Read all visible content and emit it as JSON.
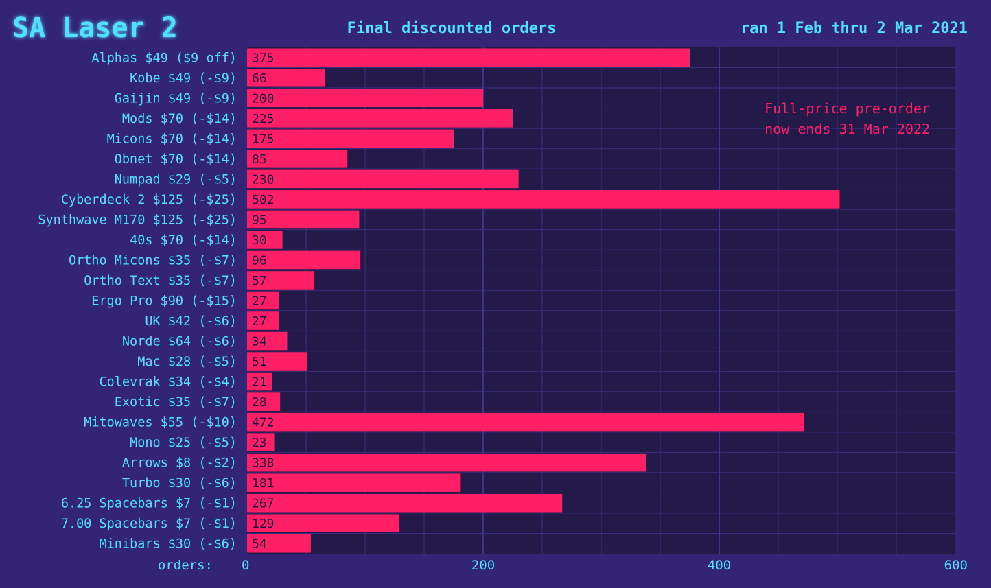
{
  "header": {
    "logo": "SA Laser 2",
    "title": "Final discounted orders",
    "date_range": "ran 1 Feb thru 2 Mar 2021"
  },
  "annotation": {
    "line1": "Full-price pre-order",
    "line2": "now ends 31 Mar 2022"
  },
  "colors": {
    "background": "#342476",
    "plot_background": "#231a4a",
    "bar": "#ff1f66",
    "label_text": "#52e0ff",
    "logo_glow": "#1f9cff",
    "annotation_text": "#ff1f66",
    "grid": "#3b2d80"
  },
  "chart_data": {
    "type": "bar",
    "orientation": "horizontal",
    "title": "Final discounted orders",
    "xlabel": "orders:",
    "ylabel": "",
    "xlim": [
      0,
      600
    ],
    "x_ticks": [
      0,
      200,
      400,
      600
    ],
    "grid": true,
    "categories": [
      "Alphas $49 ($9 off)",
      "Kobe $49 (-$9)",
      "Gaijin $49 (-$9)",
      "Mods $70 (-$14)",
      "Micons $70 (-$14)",
      "Obnet $70 (-$14)",
      "Numpad $29 (-$5)",
      "Cyberdeck 2 $125 (-$25)",
      "Synthwave M170 $125 (-$25)",
      "40s $70 (-$14)",
      "Ortho Micons $35 (-$7)",
      "Ortho Text $35 (-$7)",
      "Ergo Pro $90 (-$15)",
      "UK $42 (-$6)",
      "Norde $64 (-$6)",
      "Mac $28 (-$5)",
      "Colevrak $34 (-$4)",
      "Exotic $35 (-$7)",
      "Mitowaves $55 (-$10)",
      "Mono $25 (-$5)",
      "Arrows $8 (-$2)",
      "Turbo $30 (-$6)",
      "6.25 Spacebars $7 (-$1)",
      "7.00 Spacebars $7 (-$1)",
      "Minibars $30 (-$6)"
    ],
    "values": [
      375,
      66,
      200,
      225,
      175,
      85,
      230,
      502,
      95,
      30,
      96,
      57,
      27,
      27,
      34,
      51,
      21,
      28,
      472,
      23,
      338,
      181,
      267,
      129,
      54
    ]
  }
}
